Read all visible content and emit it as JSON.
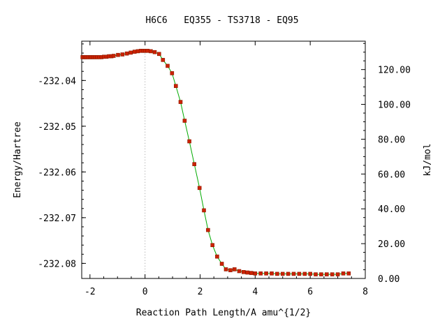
{
  "chart_data": {
    "type": "scatter",
    "title": "H6C6   EQ355 - TS3718 - EQ95",
    "xlabel": "Reaction Path Length/A amu^{1/2}",
    "ylabel": "Energy/Hartree",
    "y2label": "kJ/mol",
    "xlim": [
      -2.3,
      8.0
    ],
    "ylim": [
      -232.0833,
      -232.0314
    ],
    "y2lim": [
      0.0,
      136.3
    ],
    "x_ticks": [
      -2,
      0,
      2,
      4,
      6,
      8
    ],
    "x_tick_labels": [
      "-2",
      "0",
      "2",
      "4",
      "6",
      "8"
    ],
    "y_ticks": [
      -232.04,
      -232.05,
      -232.06,
      -232.07,
      -232.08
    ],
    "y_tick_labels": [
      "-232.04",
      "-232.05",
      "-232.06",
      "-232.07",
      "-232.08"
    ],
    "y2_ticks": [
      0,
      20,
      40,
      60,
      80,
      100,
      120
    ],
    "y2_tick_labels": [
      "0.00",
      "20.00",
      "40.00",
      "60.00",
      "80.00",
      "100.00",
      "120.00"
    ],
    "ts_marker_x": 0,
    "grid": false,
    "colors": {
      "points": "#cc2200",
      "points_edge": "#8b1a00",
      "curve": "#00aa00",
      "ts_line": "#999999"
    },
    "series": [
      {
        "x": [
          -2.27,
          -2.22,
          -2.17,
          -2.12,
          -2.06,
          -2.0,
          -1.94,
          -1.88,
          -1.81,
          -1.74,
          -1.66,
          -1.58,
          -1.49,
          -1.4,
          -1.31,
          -1.22,
          -1.14,
          -0.98,
          -0.82,
          -0.66,
          -0.52,
          -0.38,
          -0.26,
          -0.15,
          -0.06,
          0.0,
          0.09,
          0.21,
          0.35,
          0.51,
          0.65,
          0.82,
          0.98,
          1.12,
          1.29,
          1.44,
          1.61,
          1.79,
          1.98,
          2.14,
          2.29,
          2.45,
          2.62,
          2.79,
          2.94,
          3.1,
          3.25,
          3.42,
          3.58,
          3.72,
          3.86,
          4.0,
          4.2,
          4.4,
          4.6,
          4.8,
          5.0,
          5.2,
          5.4,
          5.6,
          5.8,
          6.0,
          6.2,
          6.4,
          6.6,
          6.8,
          7.0,
          7.2,
          7.4
        ],
        "y": [
          -232.0349,
          -232.0349,
          -232.0349,
          -232.0349,
          -232.0349,
          -232.0349,
          -232.0349,
          -232.0349,
          -232.0349,
          -232.0349,
          -232.0349,
          -232.0349,
          -232.0348,
          -232.0348,
          -232.0347,
          -232.0347,
          -232.0346,
          -232.0344,
          -232.0343,
          -232.0341,
          -232.0339,
          -232.0337,
          -232.0336,
          -232.0335,
          -232.0335,
          -232.0335,
          -232.0335,
          -232.0336,
          -232.0338,
          -232.0342,
          -232.0355,
          -232.0368,
          -232.0384,
          -232.0412,
          -232.0447,
          -232.0488,
          -232.0533,
          -232.0583,
          -232.0635,
          -232.0684,
          -232.0727,
          -232.076,
          -232.0785,
          -232.0801,
          -232.0813,
          -232.0815,
          -232.0813,
          -232.0817,
          -232.0819,
          -232.082,
          -232.0821,
          -232.0822,
          -232.0822,
          -232.0822,
          -232.0822,
          -232.0823,
          -232.0823,
          -232.0823,
          -232.0823,
          -232.0823,
          -232.0823,
          -232.0823,
          -232.0824,
          -232.0824,
          -232.0824,
          -232.0824,
          -232.0824,
          -232.0822,
          -232.0822
        ]
      }
    ]
  }
}
